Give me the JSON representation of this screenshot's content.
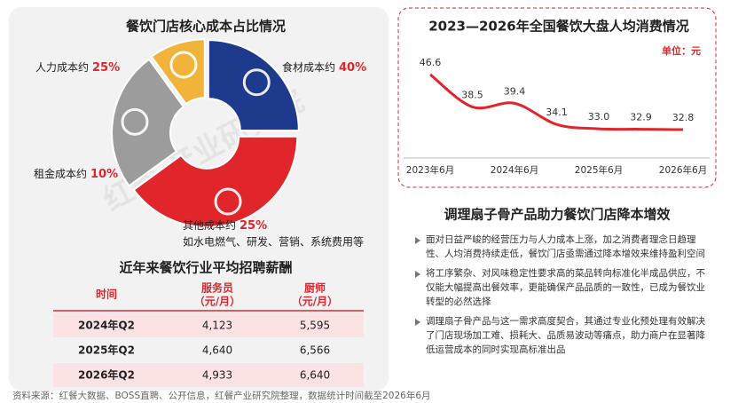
{
  "chart_data": [
    {
      "type": "pie",
      "title": "餐饮门店核心成本占比情况",
      "categories": [
        "人力成本约",
        "食材成本约",
        "其他成本约",
        "租金成本约"
      ],
      "values": [
        25,
        40,
        25,
        10
      ],
      "value_labels": [
        "25%",
        "40%",
        "25%",
        "10%"
      ],
      "colors": [
        "#1d3a8c",
        "#e0262a",
        "#9c9c9c",
        "#f2b33a"
      ],
      "note": "如水电燃气、研发、营销、系统费用等"
    },
    {
      "type": "line",
      "title": "2023—2026年全国餐饮大盘人均消费情况",
      "unit": "单位：元",
      "categories": [
        "2023年6月",
        null,
        "2024年6月",
        null,
        "2025年6月",
        null,
        "2026年6月"
      ],
      "values": [
        46.6,
        38.5,
        39.4,
        34.1,
        33.0,
        32.9,
        32.8
      ],
      "value_labels": [
        "46.6",
        "38.5",
        "39.4",
        "34.1",
        "33.0",
        "32.9",
        "32.8"
      ],
      "color": "#e0262a",
      "ylim": [
        30,
        48
      ]
    }
  ],
  "table": {
    "title": "近年来餐饮行业平均招聘薪酬",
    "header": [
      [
        "时间"
      ],
      [
        "服务员",
        "（元/月）"
      ],
      [
        "厨师",
        "（元/月）"
      ]
    ],
    "rows": [
      [
        "2024年Q2",
        "4,123",
        "5,595"
      ],
      [
        "2025年Q2",
        "4,640",
        "6,566"
      ],
      [
        "2026年Q2",
        "4,933",
        "6,640"
      ]
    ]
  },
  "section": {
    "title": "调理扇子骨产品助力餐饮门店降本增效",
    "bullets": [
      "面对日益严峻的经营压力与人力成本上涨，加之消费者理念日趋理性、人均消费持续走低，餐饮门店亟需通过降本增效来维持盈利空间",
      "将工序繁杂、对风味稳定性要求高的菜品转向标准化半成品供应，不仅能大幅提高出餐效率，更能确保产品品质的一致性，已成为餐饮业转型的必然选择",
      "调理扇子骨产品与这一需求高度契合，其通过专业化预处理有效解决了门店现场加工难、损耗大、品质易波动等痛点，助力商户在显著降低运营成本的同时实现高标准出品"
    ]
  },
  "watermark": "红餐 产业研究院",
  "source": "资料来源：红餐大数据、BOSS直聘、公开信息，红餐产业研究院整理，数据统计时间截至2026年6月"
}
